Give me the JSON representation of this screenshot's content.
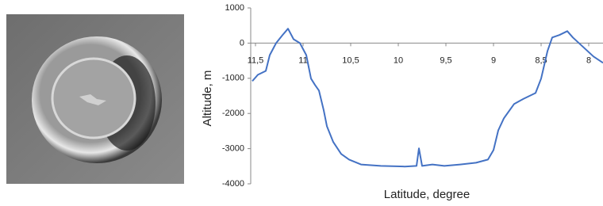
{
  "chart_data": {
    "type": "line",
    "x_label": "Latitude, degree",
    "y_label": "Altitude, m",
    "xlim": [
      11.55,
      7.85
    ],
    "ylim": [
      -4000,
      1000
    ],
    "xticks": [
      {
        "value": 11.5,
        "label": "11,5"
      },
      11,
      {
        "value": 10.5,
        "label": "10,5"
      },
      10,
      {
        "value": 9.5,
        "label": "9,5"
      },
      9,
      {
        "value": 8.5,
        "label": "8,5"
      },
      8
    ],
    "yticks": [
      -4000,
      -3000,
      -2000,
      -1000,
      0,
      1000
    ],
    "grid": false,
    "series": [
      {
        "color": "#4472c4",
        "x": [
          11.533,
          11.475,
          11.392,
          11.35,
          11.283,
          11.217,
          11.158,
          11.1,
          11.033,
          10.967,
          10.917,
          10.875,
          10.833,
          10.783,
          10.75,
          10.683,
          10.6,
          10.517,
          10.392,
          10.183,
          9.933,
          9.808,
          9.783,
          9.75,
          9.642,
          9.517,
          9.35,
          9.183,
          9.058,
          9.0,
          8.95,
          8.892,
          8.783,
          8.683,
          8.558,
          8.5,
          8.433,
          8.383,
          8.308,
          8.225,
          8.167,
          8.058,
          7.95,
          7.85
        ],
        "values": [
          -1080,
          -900,
          -790,
          -340,
          0,
          225,
          410,
          110,
          0,
          -340,
          -1010,
          -1190,
          -1350,
          -1910,
          -2360,
          -2810,
          -3150,
          -3310,
          -3450,
          -3490,
          -3510,
          -3490,
          -2990,
          -3490,
          -3450,
          -3490,
          -3450,
          -3400,
          -3310,
          -3040,
          -2480,
          -2140,
          -1730,
          -1580,
          -1420,
          -1010,
          -230,
          160,
          230,
          340,
          160,
          -110,
          -380,
          -560
        ]
      }
    ]
  }
}
